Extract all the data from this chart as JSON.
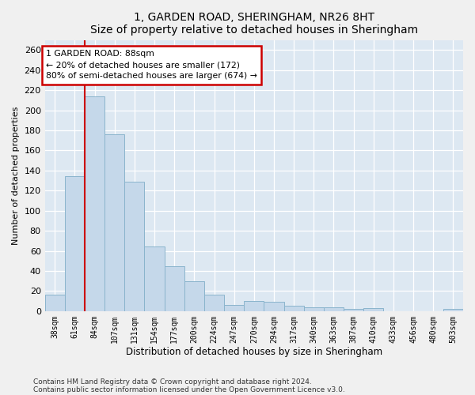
{
  "title1": "1, GARDEN ROAD, SHERINGHAM, NR26 8HT",
  "title2": "Size of property relative to detached houses in Sheringham",
  "xlabel": "Distribution of detached houses by size in Sheringham",
  "ylabel": "Number of detached properties",
  "bar_labels": [
    "38sqm",
    "61sqm",
    "84sqm",
    "107sqm",
    "131sqm",
    "154sqm",
    "177sqm",
    "200sqm",
    "224sqm",
    "247sqm",
    "270sqm",
    "294sqm",
    "317sqm",
    "340sqm",
    "363sqm",
    "387sqm",
    "410sqm",
    "433sqm",
    "456sqm",
    "480sqm",
    "503sqm"
  ],
  "bar_values": [
    16,
    134,
    214,
    176,
    129,
    64,
    45,
    30,
    16,
    6,
    10,
    9,
    5,
    4,
    4,
    2,
    3,
    0,
    0,
    0,
    2
  ],
  "bar_color": "#c5d8ea",
  "bar_edgecolor": "#8ab4cc",
  "vline_x": 1.5,
  "vline_color": "#cc0000",
  "annotation_line1": "1 GARDEN ROAD: 88sqm",
  "annotation_line2": "← 20% of detached houses are smaller (172)",
  "annotation_line3": "80% of semi-detached houses are larger (674) →",
  "annotation_edgecolor": "#cc0000",
  "plot_bg_color": "#dde8f2",
  "fig_bg_color": "#f0f0f0",
  "grid_color": "#ffffff",
  "footnote1": "Contains HM Land Registry data © Crown copyright and database right 2024.",
  "footnote2": "Contains public sector information licensed under the Open Government Licence v3.0.",
  "ylim_max": 270,
  "yticks": [
    0,
    20,
    40,
    60,
    80,
    100,
    120,
    140,
    160,
    180,
    200,
    220,
    240,
    260
  ]
}
